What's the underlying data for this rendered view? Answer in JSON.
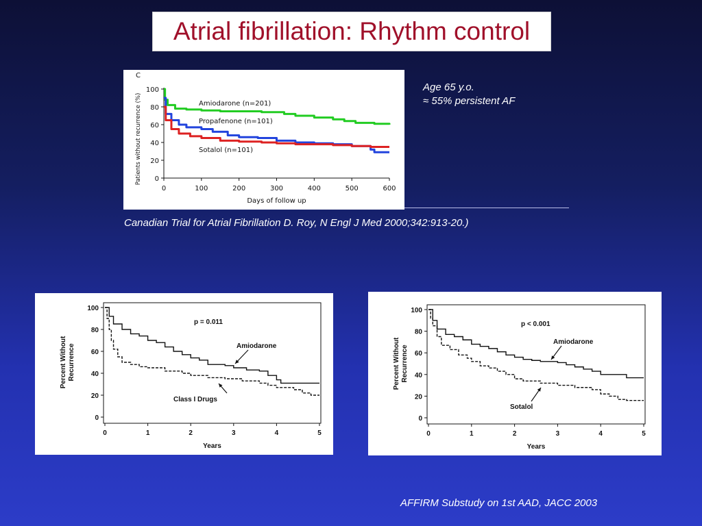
{
  "slide": {
    "title": "Atrial fibrillation: Rhythm control",
    "note_line1": "Age 65 y.o.",
    "note_line2": "≈ 55% persistent AF",
    "citation_top": "Canadian Trial for Atrial Fibrillation D. Roy, N Engl J Med 2000;342:913-20.)",
    "citation_bottom": "AFFIRM Substudy on 1st AAD, JACC 2003"
  },
  "colors": {
    "title": "#a0102a",
    "amiodarone_top": "#22cc22",
    "propafenone": "#2244dd",
    "sotalol_top": "#dd2222"
  },
  "chart_data": [
    {
      "type": "line",
      "panel_letter": "C",
      "xlabel": "Days of follow up",
      "ylabel": "Patients without recurrence (%)",
      "xlim": [
        0,
        600
      ],
      "ylim": [
        0,
        100
      ],
      "xticks": [
        0,
        100,
        200,
        300,
        400,
        500,
        600
      ],
      "yticks": [
        0,
        20,
        40,
        60,
        80,
        100
      ],
      "series": [
        {
          "name": "Amiodarone (n=201)",
          "color": "#22cc22",
          "step": true,
          "points": [
            [
              0,
              100
            ],
            [
              3,
              88
            ],
            [
              10,
              82
            ],
            [
              30,
              78
            ],
            [
              60,
              77
            ],
            [
              100,
              76
            ],
            [
              150,
              75
            ],
            [
              200,
              75
            ],
            [
              260,
              74
            ],
            [
              320,
              72
            ],
            [
              350,
              70
            ],
            [
              400,
              68
            ],
            [
              450,
              66
            ],
            [
              480,
              64
            ],
            [
              510,
              62
            ],
            [
              560,
              61
            ],
            [
              600,
              60
            ]
          ]
        },
        {
          "name": "Propafenone (n=101)",
          "color": "#2244dd",
          "step": true,
          "points": [
            [
              0,
              90
            ],
            [
              5,
              72
            ],
            [
              20,
              65
            ],
            [
              40,
              60
            ],
            [
              60,
              57
            ],
            [
              100,
              55
            ],
            [
              130,
              52
            ],
            [
              170,
              48
            ],
            [
              200,
              46
            ],
            [
              250,
              45
            ],
            [
              300,
              42
            ],
            [
              350,
              40
            ],
            [
              400,
              39
            ],
            [
              450,
              38
            ],
            [
              500,
              36
            ],
            [
              550,
              32
            ],
            [
              560,
              29
            ],
            [
              600,
              29
            ]
          ]
        },
        {
          "name": "Sotalol (n=101)",
          "color": "#dd2222",
          "step": true,
          "points": [
            [
              0,
              80
            ],
            [
              5,
              65
            ],
            [
              20,
              55
            ],
            [
              40,
              50
            ],
            [
              70,
              47
            ],
            [
              100,
              45
            ],
            [
              150,
              42
            ],
            [
              200,
              41
            ],
            [
              260,
              40
            ],
            [
              300,
              39
            ],
            [
              350,
              38
            ],
            [
              400,
              38
            ],
            [
              450,
              37
            ],
            [
              480,
              37
            ],
            [
              500,
              36
            ],
            [
              550,
              35
            ],
            [
              600,
              35
            ]
          ]
        }
      ]
    },
    {
      "type": "line",
      "annotation": "p = 0.011",
      "xlabel": "Years",
      "ylabel_line1": "Percent Without",
      "ylabel_line2": "Recurrence",
      "xlim": [
        0,
        5
      ],
      "ylim": [
        0,
        100
      ],
      "xticks": [
        0,
        1,
        2,
        3,
        4,
        5
      ],
      "yticks": [
        0,
        20,
        40,
        60,
        80,
        100
      ],
      "series": [
        {
          "name": "Amiodarone",
          "dash": false,
          "step": true,
          "points": [
            [
              0,
              100
            ],
            [
              0.1,
              92
            ],
            [
              0.2,
              85
            ],
            [
              0.4,
              80
            ],
            [
              0.6,
              76
            ],
            [
              0.8,
              74
            ],
            [
              1.0,
              70
            ],
            [
              1.2,
              68
            ],
            [
              1.4,
              64
            ],
            [
              1.6,
              60
            ],
            [
              1.8,
              57
            ],
            [
              2.0,
              54
            ],
            [
              2.2,
              52
            ],
            [
              2.4,
              48
            ],
            [
              2.6,
              48
            ],
            [
              2.8,
              47
            ],
            [
              3.0,
              45
            ],
            [
              3.3,
              43
            ],
            [
              3.6,
              42
            ],
            [
              3.8,
              38
            ],
            [
              4.0,
              34
            ],
            [
              4.1,
              31
            ],
            [
              5.0,
              31
            ]
          ]
        },
        {
          "name": "Class I Drugs",
          "dash": true,
          "step": true,
          "points": [
            [
              0,
              100
            ],
            [
              0.05,
              90
            ],
            [
              0.1,
              80
            ],
            [
              0.15,
              70
            ],
            [
              0.2,
              62
            ],
            [
              0.3,
              55
            ],
            [
              0.4,
              50
            ],
            [
              0.6,
              48
            ],
            [
              0.8,
              46
            ],
            [
              1.0,
              45
            ],
            [
              1.4,
              42
            ],
            [
              1.8,
              40
            ],
            [
              2.0,
              38
            ],
            [
              2.4,
              36
            ],
            [
              2.8,
              35
            ],
            [
              3.2,
              33
            ],
            [
              3.6,
              31
            ],
            [
              3.8,
              29
            ],
            [
              4.0,
              27
            ],
            [
              4.4,
              25
            ],
            [
              4.6,
              22
            ],
            [
              4.8,
              20
            ],
            [
              5.0,
              20
            ]
          ]
        }
      ],
      "labels": [
        {
          "text": "Amiodarone",
          "series": "Amiodarone"
        },
        {
          "text": "Class I Drugs",
          "series": "Class I Drugs"
        }
      ]
    },
    {
      "type": "line",
      "annotation": "p < 0.001",
      "xlabel": "Years",
      "ylabel_line1": "Percent Without",
      "ylabel_line2": "Recurrence",
      "xlim": [
        0,
        5
      ],
      "ylim": [
        0,
        100
      ],
      "xticks": [
        0,
        1,
        2,
        3,
        4,
        5
      ],
      "yticks": [
        0,
        20,
        40,
        60,
        80,
        100
      ],
      "series": [
        {
          "name": "Amiodarone",
          "dash": false,
          "step": true,
          "points": [
            [
              0,
              100
            ],
            [
              0.1,
              90
            ],
            [
              0.2,
              82
            ],
            [
              0.4,
              77
            ],
            [
              0.6,
              75
            ],
            [
              0.8,
              72
            ],
            [
              1.0,
              68
            ],
            [
              1.2,
              66
            ],
            [
              1.4,
              64
            ],
            [
              1.6,
              61
            ],
            [
              1.8,
              58
            ],
            [
              2.0,
              56
            ],
            [
              2.2,
              54
            ],
            [
              2.4,
              53
            ],
            [
              2.6,
              52
            ],
            [
              2.8,
              52
            ],
            [
              3.0,
              51
            ],
            [
              3.2,
              49
            ],
            [
              3.4,
              47
            ],
            [
              3.6,
              45
            ],
            [
              3.8,
              43
            ],
            [
              4.0,
              40
            ],
            [
              4.3,
              40
            ],
            [
              4.6,
              37
            ],
            [
              5.0,
              37
            ]
          ]
        },
        {
          "name": "Sotalol",
          "dash": true,
          "step": true,
          "points": [
            [
              0,
              100
            ],
            [
              0.05,
              92
            ],
            [
              0.1,
              85
            ],
            [
              0.2,
              75
            ],
            [
              0.3,
              67
            ],
            [
              0.5,
              63
            ],
            [
              0.7,
              58
            ],
            [
              0.9,
              55
            ],
            [
              1.0,
              52
            ],
            [
              1.2,
              48
            ],
            [
              1.4,
              46
            ],
            [
              1.6,
              43
            ],
            [
              1.8,
              40
            ],
            [
              2.0,
              36
            ],
            [
              2.2,
              34
            ],
            [
              2.6,
              32
            ],
            [
              3.0,
              30
            ],
            [
              3.4,
              28
            ],
            [
              3.8,
              26
            ],
            [
              4.0,
              22
            ],
            [
              4.2,
              20
            ],
            [
              4.4,
              17
            ],
            [
              4.6,
              16
            ],
            [
              5.0,
              16
            ]
          ]
        }
      ],
      "labels": [
        {
          "text": "Amiodarone",
          "series": "Amiodarone"
        },
        {
          "text": "Sotalol",
          "series": "Sotalol"
        }
      ]
    }
  ]
}
